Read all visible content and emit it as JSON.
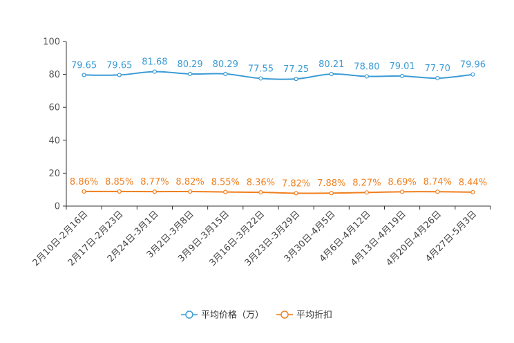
{
  "chart_data": {
    "type": "line",
    "categories": [
      "2月10日-2月16日",
      "2月17日-2月23日",
      "2月24日-3月1日",
      "3月2日-3月8日",
      "3月9日-3月15日",
      "3月16日-3月22日",
      "3月23日-3月29日",
      "3月30日-4月5日",
      "4月6日-4月12日",
      "4月13日-4月19日",
      "4月20日-4月26日",
      "4月27日-5月3日"
    ],
    "series": [
      {
        "name": "平均价格（万）",
        "color": "#3a9bd5",
        "values": [
          79.65,
          79.65,
          81.68,
          80.29,
          80.29,
          77.55,
          77.25,
          80.21,
          78.8,
          79.01,
          77.7,
          79.96
        ],
        "labels": [
          "79.65",
          "79.65",
          "81.68",
          "80.29",
          "80.29",
          "77.55",
          "77.25",
          "80.21",
          "78.80",
          "79.01",
          "77.70",
          "79.96"
        ]
      },
      {
        "name": "平均折扣",
        "color": "#f07f1e",
        "values": [
          8.86,
          8.85,
          8.77,
          8.82,
          8.55,
          8.36,
          7.82,
          7.88,
          8.27,
          8.69,
          8.74,
          8.44
        ],
        "labels": [
          "8.86%",
          "8.85%",
          "8.77%",
          "8.82%",
          "8.55%",
          "8.36%",
          "7.82%",
          "7.88%",
          "8.27%",
          "8.69%",
          "8.74%",
          "8.44%"
        ]
      }
    ],
    "yticks": [
      "0",
      "20",
      "40",
      "60",
      "80",
      "100"
    ],
    "ylim": [
      0,
      100
    ],
    "legend_position": "bottom-center",
    "title": "",
    "xlabel": "",
    "ylabel": ""
  }
}
